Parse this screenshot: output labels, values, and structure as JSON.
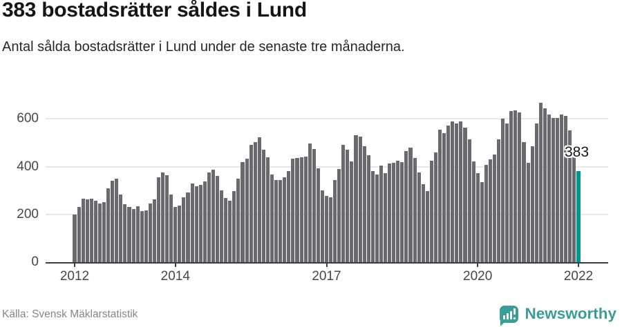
{
  "header": {
    "title": "383 bostadsrätter såldes i Lund",
    "subtitle": "Antal sålda bostadsrätter i Lund under de senaste tre månaderna."
  },
  "annotation": {
    "value_label": "383"
  },
  "footer": {
    "source": "Källa: Svensk Mäklarstatistik",
    "logo_text": "Newsworthy"
  },
  "colors": {
    "bar": "#69696e",
    "highlight": "#009790",
    "grid": "#e8e8e8",
    "axis": "#3d3d42",
    "title": "#16161a",
    "tick_label": "#46464b",
    "source_text": "#85858c",
    "logo_teal": "#3b9e96",
    "background": "#ffffff"
  },
  "chart_data": {
    "type": "bar",
    "title": "383 bostadsrätter såldes i Lund",
    "subtitle": "Antal sålda bostadsrätter i Lund under de senaste tre månaderna.",
    "xlabel": "",
    "ylabel": "",
    "x_start": "2012-01",
    "x_freq": "monthly",
    "grid": "horizontal",
    "legend": "none",
    "ylim": [
      0,
      708
    ],
    "yticks": [
      0,
      200,
      400,
      600
    ],
    "xticks": [
      {
        "label": "2012",
        "month_index": 0
      },
      {
        "label": "2014",
        "month_index": 24
      },
      {
        "label": "2017",
        "month_index": 60
      },
      {
        "label": "2020",
        "month_index": 96
      },
      {
        "label": "2022",
        "month_index": 120
      }
    ],
    "highlight_index": 120,
    "highlight_value": 383,
    "values": [
      200,
      232,
      265,
      262,
      265,
      258,
      247,
      253,
      308,
      340,
      350,
      282,
      244,
      230,
      222,
      235,
      215,
      218,
      247,
      264,
      356,
      377,
      365,
      284,
      231,
      236,
      271,
      293,
      329,
      317,
      324,
      337,
      375,
      387,
      360,
      301,
      268,
      258,
      299,
      350,
      419,
      434,
      490,
      504,
      523,
      470,
      440,
      366,
      344,
      344,
      356,
      383,
      433,
      436,
      439,
      442,
      498,
      474,
      392,
      301,
      279,
      272,
      344,
      390,
      490,
      471,
      421,
      532,
      525,
      486,
      448,
      381,
      367,
      404,
      374,
      413,
      415,
      425,
      420,
      465,
      480,
      437,
      376,
      326,
      297,
      425,
      459,
      555,
      541,
      573,
      590,
      580,
      590,
      563,
      515,
      421,
      373,
      336,
      408,
      432,
      450,
      515,
      600,
      582,
      633,
      636,
      626,
      504,
      417,
      486,
      582,
      669,
      645,
      620,
      604,
      604,
      620,
      612,
      551,
      453,
      383
    ]
  }
}
